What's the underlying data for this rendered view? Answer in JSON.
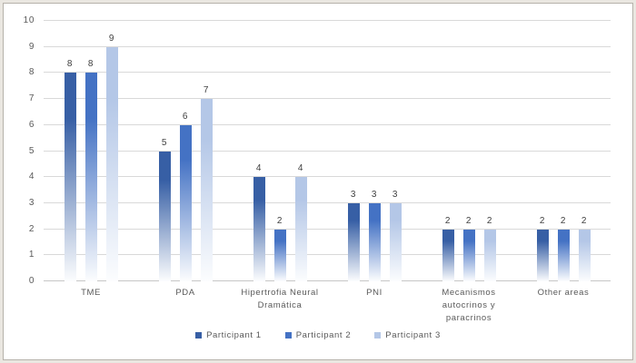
{
  "chart_data": {
    "type": "bar",
    "title": "",
    "xlabel": "",
    "ylabel": "",
    "categories": [
      "TME",
      "PDA",
      "Hipertrofia Neural Dramática",
      "PNI",
      "Mecanismos autocrinos y paracrinos",
      "Other areas"
    ],
    "series": [
      {
        "name": "Participant 1",
        "color": "#375FA5",
        "values": [
          8,
          5,
          4,
          3,
          2,
          2
        ]
      },
      {
        "name": "Participant 2",
        "color": "#4472C4",
        "values": [
          8,
          6,
          2,
          3,
          2,
          2
        ]
      },
      {
        "name": "Participant 3",
        "color": "#B4C7E7",
        "values": [
          9,
          7,
          4,
          3,
          2,
          2
        ]
      }
    ],
    "ylim": [
      0,
      10
    ],
    "ytick_step": 1,
    "grid": true,
    "data_labels": true,
    "legend_position": "bottom"
  },
  "colors": {
    "gridline": "#d9d9d9",
    "axis_line": "#c6c6c6",
    "tick_text": "#595959",
    "value_text": "#404040",
    "bar_fade_end": "#fcfdfe",
    "background": "#ffffff",
    "frame": "#eae7e1",
    "frame_border": "#b6b2aa"
  }
}
